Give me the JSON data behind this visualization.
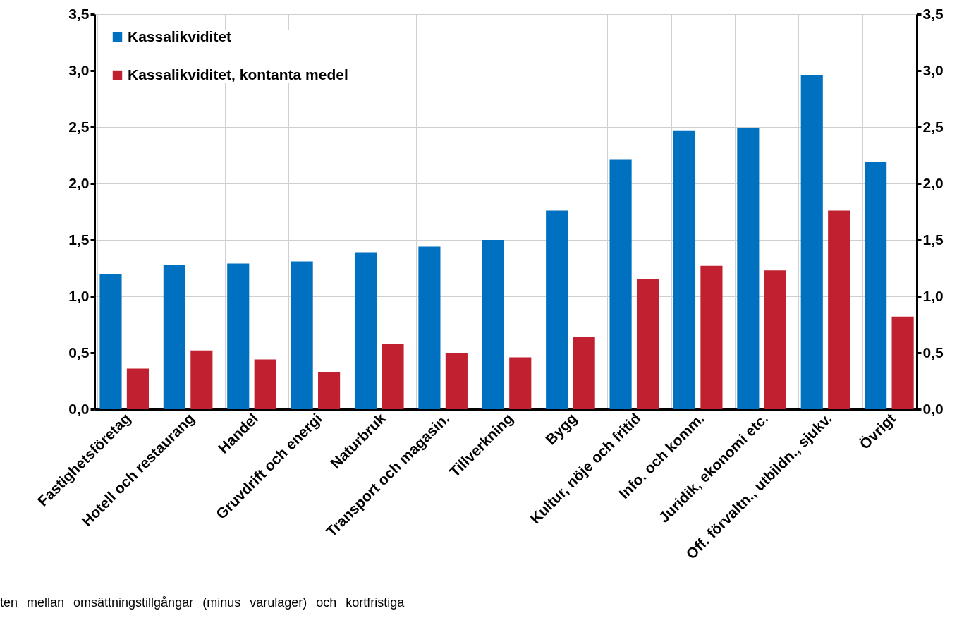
{
  "chart_data": {
    "type": "bar",
    "categories": [
      "Fastighetsföretag",
      "Hotell och restaurang",
      "Handel",
      "Gruvdrift och energi",
      "Naturbruk",
      "Transport och magasin.",
      "Tillverkning",
      "Bygg",
      "Kultur, nöje och fritid",
      "Info. och komm.",
      "Juridik, ekonomi etc.",
      "Off. förvaltn., utbildn., sjukv.",
      "Övrigt"
    ],
    "series": [
      {
        "name": "Kassalikviditet",
        "color": "#0070c0",
        "values": [
          1.2,
          1.28,
          1.29,
          1.31,
          1.39,
          1.44,
          1.5,
          1.76,
          2.21,
          2.47,
          2.49,
          2.96,
          2.19
        ]
      },
      {
        "name": "Kassalikviditet, kontanta medel",
        "color": "#c0202f",
        "values": [
          0.36,
          0.52,
          0.44,
          0.33,
          0.58,
          0.5,
          0.46,
          0.64,
          1.15,
          1.27,
          1.23,
          1.76,
          0.82
        ]
      }
    ],
    "ylim": [
      0,
      3.5
    ],
    "yticks": [
      {
        "value": 0,
        "label": "0,0"
      },
      {
        "value": 0.5,
        "label": "0,5"
      },
      {
        "value": 1,
        "label": "1,0"
      },
      {
        "value": 1.5,
        "label": "1,5"
      },
      {
        "value": 2,
        "label": "2,0"
      },
      {
        "value": 2.5,
        "label": "2,5"
      },
      {
        "value": 3,
        "label": "3,0"
      },
      {
        "value": 3.5,
        "label": "3,5"
      }
    ],
    "y2lim": [
      0,
      3.5
    ],
    "y2ticks": [
      {
        "value": 0,
        "label": "0,0"
      },
      {
        "value": 0.5,
        "label": "0,5"
      },
      {
        "value": 1,
        "label": "1,0"
      },
      {
        "value": 1.5,
        "label": "1,5"
      },
      {
        "value": 2,
        "label": "2,0"
      },
      {
        "value": 2.5,
        "label": "2,5"
      },
      {
        "value": 3,
        "label": "3,0"
      },
      {
        "value": 3.5,
        "label": "3,5"
      }
    ],
    "grid": true,
    "legend": "top left",
    "annotations": [
      "ten mellan omsättningstillgångar (minus varulager) och kortfristiga"
    ]
  }
}
